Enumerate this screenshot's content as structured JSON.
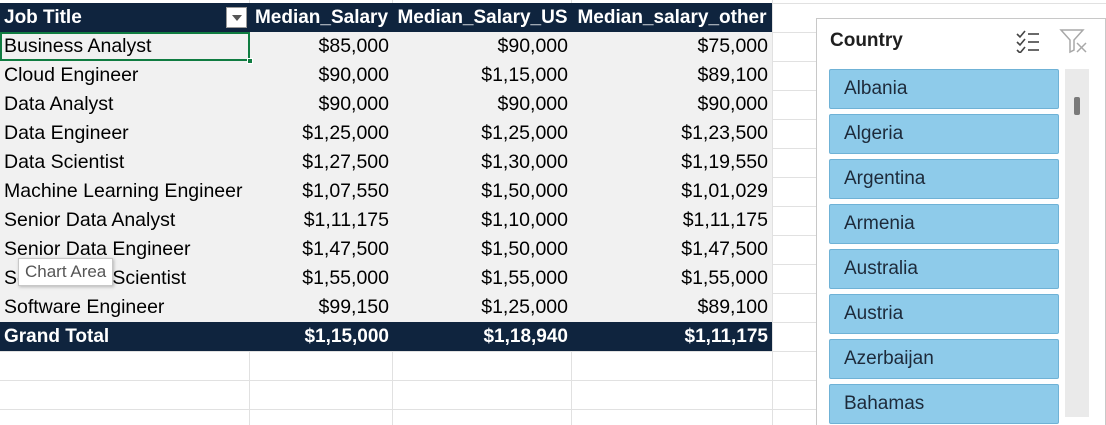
{
  "pivot": {
    "headers": [
      "Job Title",
      "Median_Salary",
      "Median_Salary_US",
      "Median_salary_other"
    ],
    "rows": [
      {
        "title": "Business Analyst",
        "median": "$85,000",
        "us": "$90,000",
        "other": "$75,000"
      },
      {
        "title": "Cloud Engineer",
        "median": "$90,000",
        "us": "$1,15,000",
        "other": "$89,100"
      },
      {
        "title": "Data Analyst",
        "median": "$90,000",
        "us": "$90,000",
        "other": "$90,000"
      },
      {
        "title": "Data Engineer",
        "median": "$1,25,000",
        "us": "$1,25,000",
        "other": "$1,23,500"
      },
      {
        "title": "Data Scientist",
        "median": "$1,27,500",
        "us": "$1,30,000",
        "other": "$1,19,550"
      },
      {
        "title": "Machine Learning Engineer",
        "median": "$1,07,550",
        "us": "$1,50,000",
        "other": "$1,01,029"
      },
      {
        "title": "Senior Data Analyst",
        "median": "$1,11,175",
        "us": "$1,10,000",
        "other": "$1,11,175"
      },
      {
        "title": "Senior Data Engineer",
        "median": "$1,47,500",
        "us": "$1,50,000",
        "other": "$1,47,500"
      },
      {
        "title": "Senior Data Scientist",
        "median": "$1,55,000",
        "us": "$1,55,000",
        "other": "$1,55,000"
      },
      {
        "title": "Software Engineer",
        "median": "$99,150",
        "us": "$1,25,000",
        "other": "$89,100"
      }
    ],
    "total": {
      "title": "Grand Total",
      "median": "$1,15,000",
      "us": "$1,18,940",
      "other": "$1,11,175"
    }
  },
  "tooltip": "Chart Area",
  "slicer": {
    "title": "Country",
    "items": [
      "Albania",
      "Algeria",
      "Argentina",
      "Armenia",
      "Australia",
      "Austria",
      "Azerbaijan",
      "Bahamas"
    ]
  },
  "colors": {
    "header_bg": "#0f243e",
    "row_bg": "#f1f1f1",
    "slicer_item": "#8ecbea",
    "selection": "#107c41"
  }
}
